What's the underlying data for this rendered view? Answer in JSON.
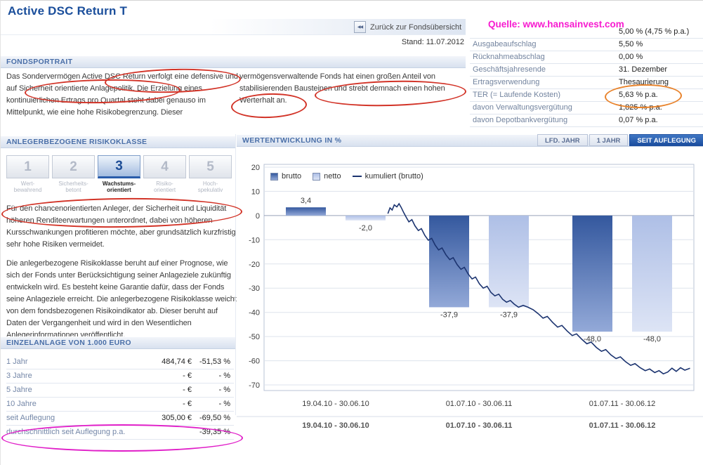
{
  "header": {
    "title": "Active DSC Return T",
    "back_icon": "◀◀",
    "back_label": "Zurück zur Fondsübersicht",
    "stand": "Stand: 11.07.2012",
    "source": "Quelle: www.hansainvest.com"
  },
  "fund_info": {
    "partial_row": {
      "label": "",
      "value": "5,00 % (4,75 % p.a.)"
    },
    "rows": [
      {
        "label": "Ausgabeaufschlag",
        "value": "5,50 %"
      },
      {
        "label": "Rücknahmeabschlag",
        "value": "0,00 %"
      },
      {
        "label": "Geschäftsjahresende",
        "value": "31. Dezember"
      },
      {
        "label": "Ertragsverwendung",
        "value": "Thesaurierung"
      },
      {
        "label": "TER (= Laufende Kosten)",
        "value": "5,63 % p.a."
      },
      {
        "label": "davon Verwaltungsvergütung",
        "value": "1,825 % p.a."
      },
      {
        "label": "davon Depotbankvergütung",
        "value": "0,07 % p.a."
      }
    ]
  },
  "fondsportrait": {
    "heading": "FONDSPORTRAIT",
    "left_text": "Das Sondervermögen Active DSC Return verfolgt eine defensive und auf Sicherheit orientierte Anlagepolitik. Die Erzielung eines kontinuierlichen Ertrags pro Quartal steht dabei genauso im Mittelpunkt, wie eine hohe Risikobegrenzung. Dieser",
    "right_text": "vermögensverwaltende Fonds hat einen großen Anteil von stabilisierenden Bausteinen und strebt demnach einen hohen Werterhalt an."
  },
  "risk_section": {
    "heading": "ANLEGERBEZOGENE RISIKOKLASSE",
    "classes": [
      {
        "number": "1",
        "label_line1": "Wert-",
        "label_line2": "bewahrend",
        "selected": false
      },
      {
        "number": "2",
        "label_line1": "Sicherheits-",
        "label_line2": "betont",
        "selected": false
      },
      {
        "number": "3",
        "label_line1": "Wachstums-",
        "label_line2": "orientiert",
        "selected": true
      },
      {
        "number": "4",
        "label_line1": "Risiko-",
        "label_line2": "orientiert",
        "selected": false
      },
      {
        "number": "5",
        "label_line1": "Hoch-",
        "label_line2": "spekulativ",
        "selected": false
      }
    ],
    "paragraph1": "Für den chancenorientierten Anleger, der Sicherheit und Liquidität höheren Renditeerwartungen unterordnet, dabei von höheren Kursschwankungen profitieren möchte, aber grundsätzlich kurzfristig sehr hohe Risiken vermeidet.",
    "paragraph2": "Die anlegerbezogene Risikoklasse beruht auf einer Prognose, wie sich der Fonds unter Berücksichtigung seiner Anlageziele zukünftig entwickeln wird. Es besteht keine Garantie dafür, dass der Fonds seine Anlageziele erreicht. Die anlegerbezogene Risikoklasse weicht von dem fondsbezogenen Risikoindikator ab. Dieser beruht auf Daten der Vergangenheit und wird in den Wesentlichen Anlegerinformationen veröffentlicht."
  },
  "einzelanlage": {
    "heading": "EINZELANLAGE VON 1.000 EURO",
    "rows": [
      {
        "label": "1 Jahr",
        "amount": "484,74 €",
        "percent": "-51,53 %"
      },
      {
        "label": "3 Jahre",
        "amount": "- €",
        "percent": "- %"
      },
      {
        "label": "5 Jahre",
        "amount": "- €",
        "percent": "- %"
      },
      {
        "label": "10 Jahre",
        "amount": "- €",
        "percent": "- %"
      },
      {
        "label": "seit Auflegung",
        "amount": "305,00 €",
        "percent": "-69,50 %"
      },
      {
        "label": "durchschnittlich seit Auflegung p.a.",
        "amount": "",
        "percent": "-39,35 %"
      }
    ]
  },
  "performance": {
    "heading": "WERTENTWICKLUNG IN %",
    "tabs": [
      {
        "label": "LFD. JAHR",
        "selected": false
      },
      {
        "label": "1 JAHR",
        "selected": false
      },
      {
        "label": "SEIT AUFLEGUNG",
        "selected": true
      }
    ]
  },
  "chart_data": {
    "type": "bar",
    "title": "WERTENTWICKLUNG IN %",
    "categories": [
      "19.04.10 - 30.06.10",
      "01.07.10 - 30.06.11",
      "01.07.11 - 30.06.12"
    ],
    "x_axis_row2": [
      "19.04.10 - 30.06.10",
      "01.07.10 - 30.06.11",
      "01.07.11 - 30.06.12"
    ],
    "series": [
      {
        "name": "brutto",
        "values": [
          3.4,
          -37.9,
          -48.0
        ],
        "color_top": "#34589e",
        "color_bottom": "#93a9d8"
      },
      {
        "name": "netto",
        "values": [
          -2.0,
          -37.9,
          -48.0
        ],
        "color_top": "#aebfe6",
        "color_bottom": "#dde4f5"
      }
    ],
    "bar_labels": [
      [
        "3,4",
        "-2,0"
      ],
      [
        "-37,9",
        "-37,9"
      ],
      [
        "-48,0",
        "-48,0"
      ]
    ],
    "line_series": {
      "name": "kumuliert (brutto)",
      "color": "#1c3470",
      "points": [
        [
          0.288,
          0.8
        ],
        [
          0.293,
          3.2
        ],
        [
          0.298,
          2.3
        ],
        [
          0.303,
          4.4
        ],
        [
          0.309,
          3.6
        ],
        [
          0.314,
          4.9
        ],
        [
          0.319,
          3.4
        ],
        [
          0.325,
          1.2
        ],
        [
          0.331,
          -0.8
        ],
        [
          0.337,
          -2.6
        ],
        [
          0.344,
          -1.7
        ],
        [
          0.351,
          -4.2
        ],
        [
          0.359,
          -6.2
        ],
        [
          0.366,
          -5.4
        ],
        [
          0.374,
          -8.2
        ],
        [
          0.382,
          -10.2
        ],
        [
          0.39,
          -9.4
        ],
        [
          0.398,
          -12.2
        ],
        [
          0.406,
          -14.2
        ],
        [
          0.414,
          -13.4
        ],
        [
          0.423,
          -16.2
        ],
        [
          0.432,
          -18.2
        ],
        [
          0.44,
          -17.4
        ],
        [
          0.449,
          -20.2
        ],
        [
          0.458,
          -22.2
        ],
        [
          0.466,
          -21.4
        ],
        [
          0.475,
          -24.2
        ],
        [
          0.484,
          -26.2
        ],
        [
          0.492,
          -25.4
        ],
        [
          0.501,
          -28.2
        ],
        [
          0.51,
          -30.0
        ],
        [
          0.519,
          -29.2
        ],
        [
          0.528,
          -31.8
        ],
        [
          0.537,
          -33.2
        ],
        [
          0.546,
          -32.5
        ],
        [
          0.555,
          -34.6
        ],
        [
          0.564,
          -35.8
        ],
        [
          0.573,
          -35.1
        ],
        [
          0.582,
          -36.6
        ],
        [
          0.592,
          -37.9
        ],
        [
          0.603,
          -37.1
        ],
        [
          0.614,
          -37.9
        ],
        [
          0.626,
          -38.9
        ],
        [
          0.638,
          -40.6
        ],
        [
          0.649,
          -42.4
        ],
        [
          0.659,
          -41.7
        ],
        [
          0.671,
          -44.1
        ],
        [
          0.683,
          -46.1
        ],
        [
          0.693,
          -45.4
        ],
        [
          0.705,
          -47.7
        ],
        [
          0.717,
          -49.6
        ],
        [
          0.727,
          -48.9
        ],
        [
          0.739,
          -51.1
        ],
        [
          0.751,
          -53.0
        ],
        [
          0.761,
          -52.3
        ],
        [
          0.773,
          -54.5
        ],
        [
          0.785,
          -56.1
        ],
        [
          0.795,
          -55.4
        ],
        [
          0.807,
          -57.6
        ],
        [
          0.819,
          -59.1
        ],
        [
          0.829,
          -58.4
        ],
        [
          0.841,
          -60.4
        ],
        [
          0.853,
          -61.9
        ],
        [
          0.863,
          -61.2
        ],
        [
          0.875,
          -62.9
        ],
        [
          0.887,
          -64.1
        ],
        [
          0.897,
          -63.4
        ],
        [
          0.909,
          -64.9
        ],
        [
          0.919,
          -64.1
        ],
        [
          0.929,
          -65.4
        ],
        [
          0.939,
          -64.7
        ],
        [
          0.949,
          -63.1
        ],
        [
          0.959,
          -64.4
        ],
        [
          0.969,
          -62.9
        ],
        [
          0.979,
          -63.9
        ],
        [
          0.991,
          -63.1
        ]
      ]
    },
    "ylim": [
      -70,
      20
    ],
    "yticks": [
      20,
      10,
      0,
      -10,
      -20,
      -30,
      -40,
      -50,
      -60,
      -70
    ],
    "grid": true,
    "legend": [
      "brutto",
      "netto",
      "kumuliert (brutto)"
    ],
    "legend_position": "top-left"
  },
  "colors": {
    "accent_blue": "#1b4d9e",
    "heading_blue": "#4a6fa8",
    "source_magenta": "#f71bd0",
    "annotation_red": "#d23327",
    "annotation_orange": "#e8832c",
    "annotation_magenta": "#e01ec8"
  }
}
